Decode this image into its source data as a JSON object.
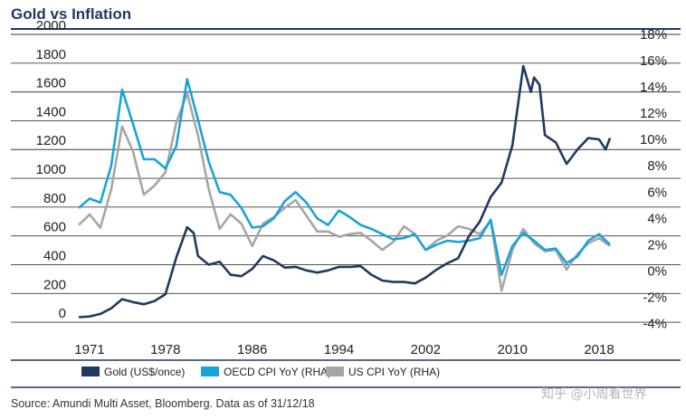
{
  "chart_data": {
    "type": "line",
    "title": "Gold vs Inflation",
    "source": "Source: Amundi Multi Asset, Bloomberg. Data as of 31/12/18",
    "x_tick_labels": [
      "1971",
      "1978",
      "1986",
      "1994",
      "2002",
      "2010",
      "2018"
    ],
    "x_tick_values": [
      1971,
      1978,
      1986,
      1994,
      2002,
      2010,
      2018
    ],
    "xlim": [
      1969,
      2019.5
    ],
    "left_axis": {
      "ticks": [
        0,
        200,
        400,
        600,
        800,
        1000,
        1200,
        1400,
        1600,
        1800,
        2000
      ],
      "ylim": [
        -100,
        2000
      ]
    },
    "right_axis": {
      "ticks": [
        "18%",
        "16%",
        "14%",
        "12%",
        "10%",
        "8%",
        "6%",
        "4%",
        "2%",
        "0%",
        "-2%",
        "-4%"
      ],
      "tick_values": [
        18,
        16,
        14,
        12,
        10,
        8,
        6,
        4,
        2,
        0,
        -2,
        -4
      ],
      "ylim": [
        -5,
        18
      ]
    },
    "grid": true,
    "legend_position": "bottom-left",
    "series": [
      {
        "name": "Gold (US$/once)",
        "axis": "left",
        "color": "#1f3a5f",
        "points": [
          [
            1970,
            35
          ],
          [
            1971,
            40
          ],
          [
            1972,
            58
          ],
          [
            1973,
            97
          ],
          [
            1974,
            160
          ],
          [
            1975,
            140
          ],
          [
            1976,
            125
          ],
          [
            1977,
            148
          ],
          [
            1978,
            195
          ],
          [
            1979,
            450
          ],
          [
            1980,
            660
          ],
          [
            1980.6,
            620
          ],
          [
            1981,
            460
          ],
          [
            1982,
            400
          ],
          [
            1983,
            420
          ],
          [
            1984,
            330
          ],
          [
            1985,
            320
          ],
          [
            1986,
            370
          ],
          [
            1987,
            460
          ],
          [
            1988,
            430
          ],
          [
            1989,
            380
          ],
          [
            1990,
            385
          ],
          [
            1991,
            360
          ],
          [
            1992,
            345
          ],
          [
            1993,
            360
          ],
          [
            1994,
            385
          ],
          [
            1995,
            385
          ],
          [
            1996,
            390
          ],
          [
            1997,
            330
          ],
          [
            1998,
            290
          ],
          [
            1999,
            280
          ],
          [
            2000,
            280
          ],
          [
            2001,
            270
          ],
          [
            2002,
            310
          ],
          [
            2003,
            365
          ],
          [
            2004,
            410
          ],
          [
            2005,
            445
          ],
          [
            2006,
            600
          ],
          [
            2007,
            700
          ],
          [
            2008,
            870
          ],
          [
            2009,
            970
          ],
          [
            2010,
            1230
          ],
          [
            2011,
            1780
          ],
          [
            2011.7,
            1600
          ],
          [
            2012,
            1700
          ],
          [
            2012.5,
            1650
          ],
          [
            2013,
            1300
          ],
          [
            2014,
            1250
          ],
          [
            2015,
            1100
          ],
          [
            2016,
            1200
          ],
          [
            2017,
            1280
          ],
          [
            2018,
            1270
          ],
          [
            2018.6,
            1200
          ],
          [
            2019,
            1280
          ]
        ]
      },
      {
        "name": "OECD CPI YoY (RHA)",
        "axis": "right",
        "color": "#1aa3d8",
        "points": [
          [
            1970,
            4.8
          ],
          [
            1971,
            5.5
          ],
          [
            1972,
            5.2
          ],
          [
            1973,
            8
          ],
          [
            1974,
            13.8
          ],
          [
            1975,
            11.2
          ],
          [
            1976,
            8.5
          ],
          [
            1977,
            8.5
          ],
          [
            1978,
            7.8
          ],
          [
            1979,
            9.5
          ],
          [
            1980,
            14.6
          ],
          [
            1981,
            11.5
          ],
          [
            1982,
            8.3
          ],
          [
            1983,
            6
          ],
          [
            1984,
            5.8
          ],
          [
            1985,
            4.8
          ],
          [
            1986,
            3.3
          ],
          [
            1987,
            3.4
          ],
          [
            1988,
            4
          ],
          [
            1989,
            5.3
          ],
          [
            1990,
            6
          ],
          [
            1991,
            5.2
          ],
          [
            1992,
            4
          ],
          [
            1993,
            3.5
          ],
          [
            1994,
            4.6
          ],
          [
            1995,
            4.1
          ],
          [
            1996,
            3.5
          ],
          [
            1997,
            3.2
          ],
          [
            1998,
            2.8
          ],
          [
            1999,
            2.4
          ],
          [
            2000,
            2.5
          ],
          [
            2001,
            2.8
          ],
          [
            2002,
            1.6
          ],
          [
            2003,
            2
          ],
          [
            2004,
            2.3
          ],
          [
            2005,
            2.2
          ],
          [
            2006,
            2.3
          ],
          [
            2007,
            2.5
          ],
          [
            2008,
            3.9
          ],
          [
            2009,
            -0.3
          ],
          [
            2010,
            1.9
          ],
          [
            2011,
            2.9
          ],
          [
            2012,
            2.3
          ],
          [
            2013,
            1.6
          ],
          [
            2014,
            1.7
          ],
          [
            2015,
            0.6
          ],
          [
            2016,
            1.1
          ],
          [
            2017,
            2.3
          ],
          [
            2018,
            2.8
          ],
          [
            2019,
            2
          ]
        ]
      },
      {
        "name": "US CPI YoY (RHA)",
        "axis": "right",
        "color": "#a6a6a6",
        "points": [
          [
            1970,
            3.5
          ],
          [
            1971,
            4.3
          ],
          [
            1972,
            3.3
          ],
          [
            1973,
            6.2
          ],
          [
            1974,
            11
          ],
          [
            1975,
            9.1
          ],
          [
            1976,
            5.8
          ],
          [
            1977,
            6.5
          ],
          [
            1978,
            7.5
          ],
          [
            1979,
            11.3
          ],
          [
            1980,
            13.5
          ],
          [
            1981,
            10.3
          ],
          [
            1982,
            6.2
          ],
          [
            1983,
            3.2
          ],
          [
            1984,
            4.3
          ],
          [
            1985,
            3.6
          ],
          [
            1986,
            1.9
          ],
          [
            1987,
            3.6
          ],
          [
            1988,
            4.1
          ],
          [
            1989,
            4.8
          ],
          [
            1990,
            5.4
          ],
          [
            1991,
            4.2
          ],
          [
            1992,
            3
          ],
          [
            1993,
            3
          ],
          [
            1994,
            2.6
          ],
          [
            1995,
            2.8
          ],
          [
            1996,
            2.9
          ],
          [
            1997,
            2.3
          ],
          [
            1998,
            1.6
          ],
          [
            1999,
            2.2
          ],
          [
            2000,
            3.4
          ],
          [
            2001,
            2.8
          ],
          [
            2002,
            1.6
          ],
          [
            2003,
            2.3
          ],
          [
            2004,
            2.7
          ],
          [
            2005,
            3.4
          ],
          [
            2006,
            3.2
          ],
          [
            2007,
            2.8
          ],
          [
            2008,
            3.8
          ],
          [
            2009,
            -1.5
          ],
          [
            2010,
            1.6
          ],
          [
            2011,
            3.2
          ],
          [
            2012,
            2.1
          ],
          [
            2013,
            1.5
          ],
          [
            2014,
            1.6
          ],
          [
            2015,
            0.1
          ],
          [
            2016,
            1.3
          ],
          [
            2017,
            2.1
          ],
          [
            2018,
            2.5
          ],
          [
            2019,
            1.9
          ]
        ]
      }
    ]
  },
  "watermark": "知乎 @小周看世界"
}
